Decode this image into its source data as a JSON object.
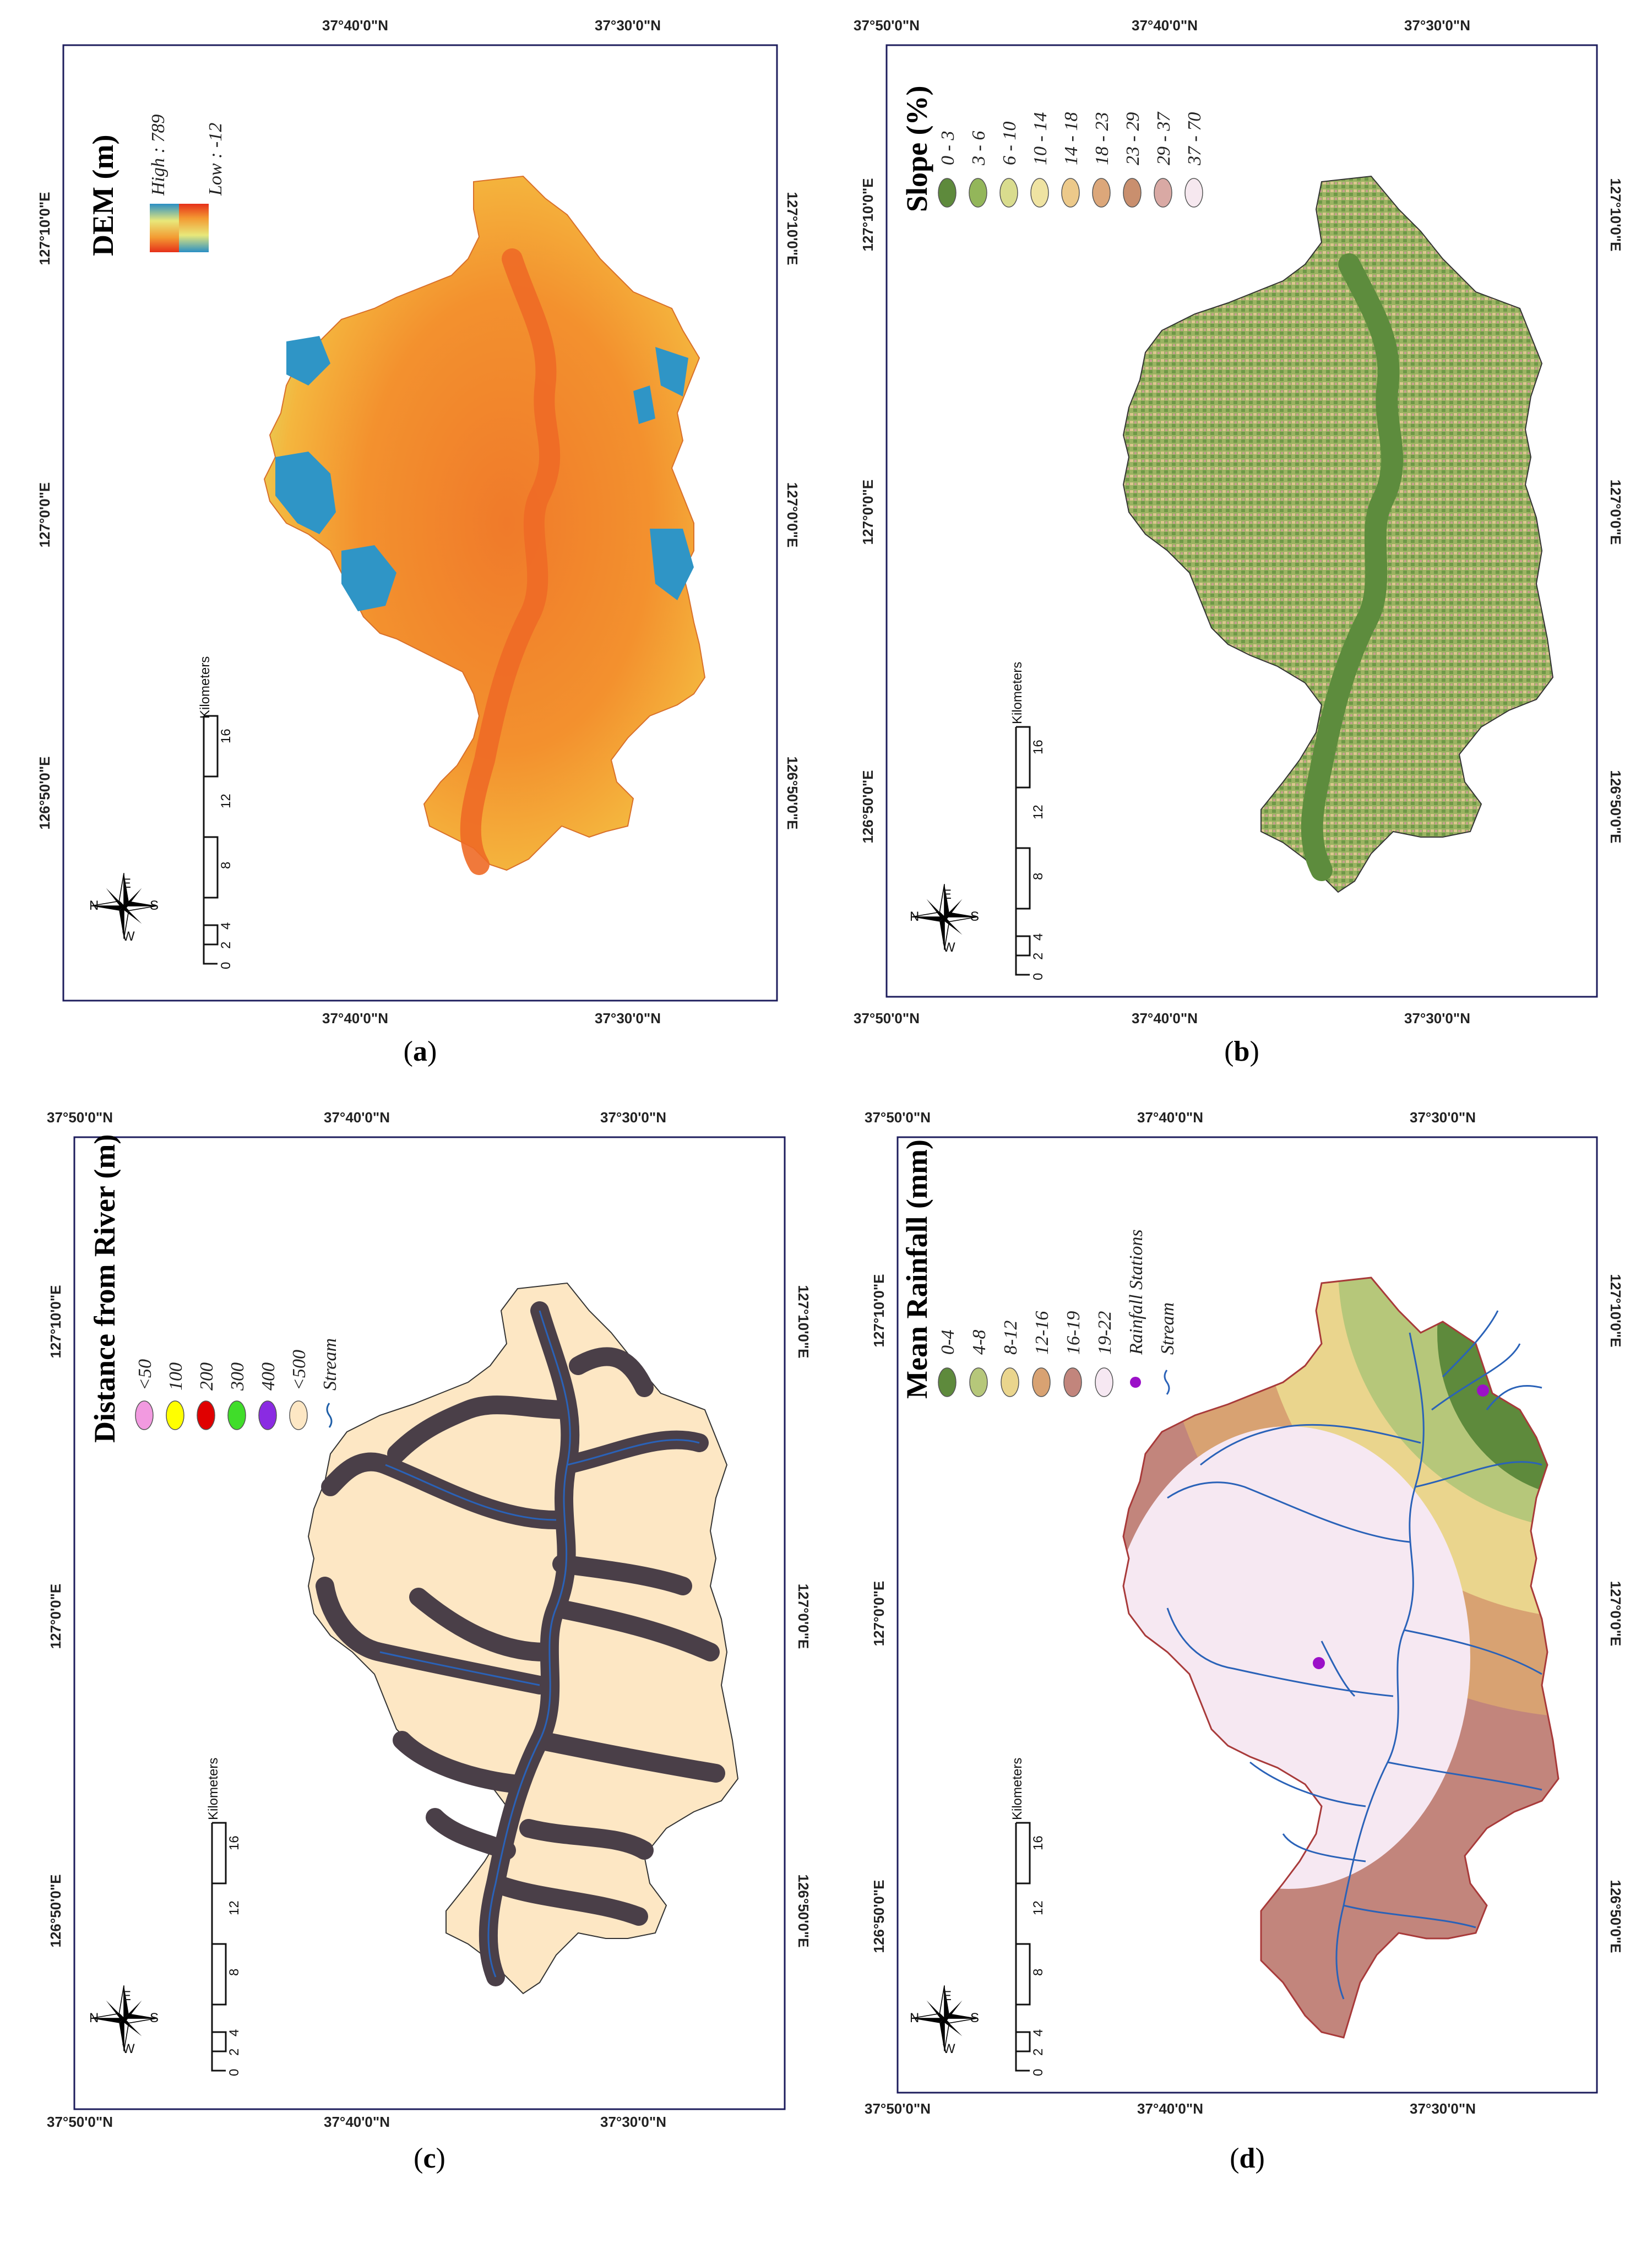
{
  "panels": [
    {
      "id": "a",
      "caption_letter": "a",
      "legend_title": "DEM (m)",
      "legend_high": "High : 789",
      "legend_low": "Low : -12",
      "top_coords": [
        "37°40'0\"N",
        "37°30'0\"N"
      ],
      "bottom_coords": [
        "37°40'0\"N",
        "37°30'0\"N"
      ],
      "left_coords": [
        "127°10'0\"E",
        "127°0'0\"E",
        "126°50'0\"E"
      ],
      "right_coords": [
        "127°10'0\"E",
        "127°0'0\"E",
        "126°50'0\"E"
      ]
    },
    {
      "id": "b",
      "caption_letter": "b",
      "legend_title": "Slope (%)",
      "legend_items": [
        "0 - 3",
        "3 - 6",
        "6 - 10",
        "10 - 14",
        "14 - 18",
        "18 - 23",
        "23 - 29",
        "29 - 37",
        "37 - 70"
      ],
      "legend_colors": [
        "#5e8a3c",
        "#93b65a",
        "#d9dc8e",
        "#efe3a2",
        "#ecc98a",
        "#dca77a",
        "#c98f6e",
        "#d9a9a4",
        "#f6e8ef"
      ],
      "top_coords": [
        "37°50'0\"N",
        "37°40'0\"N",
        "37°30'0\"N"
      ],
      "bottom_coords": [
        "37°50'0\"N",
        "37°40'0\"N",
        "37°30'0\"N"
      ],
      "left_coords": [
        "127°10'0\"E",
        "127°0'0\"E",
        "126°50'0\"E"
      ],
      "right_coords": [
        "127°10'0\"E",
        "127°0'0\"E",
        "126°50'0\"E"
      ]
    },
    {
      "id": "c",
      "caption_letter": "c",
      "legend_title": "Distance from River (m)",
      "legend_items": [
        "<50",
        "100",
        "200",
        "300",
        "400",
        "<500",
        "Stream"
      ],
      "legend_colors": [
        "#f29ae0",
        "#ffff00",
        "#e00000",
        "#40dd2a",
        "#8a2be2",
        "#fde7c4",
        "#1f5fa8"
      ],
      "top_coords": [
        "37°50'0\"N",
        "37°40'0\"N",
        "37°30'0\"N"
      ],
      "bottom_coords": [
        "37°50'0\"N",
        "37°40'0\"N",
        "37°30'0\"N"
      ],
      "left_coords": [
        "127°10'0\"E",
        "127°0'0\"E",
        "126°50'0\"E"
      ],
      "right_coords": [
        "127°10'0\"E",
        "127°0'0\"E",
        "126°50'0\"E"
      ]
    },
    {
      "id": "d",
      "caption_letter": "d",
      "legend_title": "Mean Rainfall (mm)",
      "legend_items": [
        "0-4",
        "4-8",
        "8-12",
        "12-16",
        "16-19",
        "19-22",
        "Rainfall Stations",
        "Stream"
      ],
      "legend_colors": [
        "#5e8a3c",
        "#b6c77a",
        "#ead58d",
        "#d8a272",
        "#c2857c",
        "#f6e8f2",
        "#9b10c8",
        "#2a62b8"
      ],
      "top_coords": [
        "37°50'0\"N",
        "37°40'0\"N",
        "37°30'0\"N"
      ],
      "bottom_coords": [
        "37°50'0\"N",
        "37°40'0\"N",
        "37°30'0\"N"
      ],
      "left_coords": [
        "127°10'0\"E",
        "127°0'0\"E",
        "126°50'0\"E"
      ],
      "right_coords": [
        "127°10'0\"E",
        "127°0'0\"E",
        "126°50'0\"E"
      ]
    }
  ],
  "scale_bar": {
    "unit": "Kilometers",
    "ticks": [
      "0",
      "2",
      "4",
      "8",
      "12",
      "16"
    ]
  },
  "compass": {
    "n": "N",
    "e": "E",
    "s": "S",
    "w": "W"
  }
}
